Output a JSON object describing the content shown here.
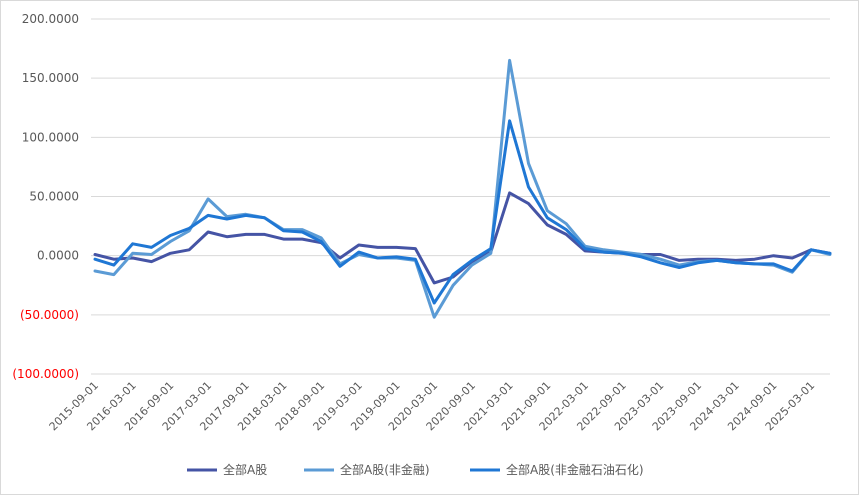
{
  "chart_data": {
    "type": "line",
    "title": "",
    "xlabel": "",
    "ylabel": "",
    "ylim": [
      -100,
      200
    ],
    "grid": "horizontal",
    "legend_position": "bottom",
    "y_ticks": [
      200,
      150,
      100,
      50,
      0,
      -50,
      -100
    ],
    "y_tick_labels": [
      "200.0000",
      "150.0000",
      "100.0000",
      "50.0000",
      "0.0000",
      "(50.0000)",
      "(100.0000)"
    ],
    "negative_tick_color": "#ff0000",
    "x_tick_labels": [
      "2015-09-01",
      "2016-03-01",
      "2016-09-01",
      "2017-03-01",
      "2017-09-01",
      "2018-03-01",
      "2018-09-01",
      "2019-03-01",
      "2019-09-01",
      "2020-03-01",
      "2020-09-01",
      "2021-03-01",
      "2021-09-01",
      "2022-03-01",
      "2022-09-01",
      "2023-03-01",
      "2023-09-01",
      "2024-03-01",
      "2024-09-01",
      "2025-03-01"
    ],
    "x": [
      "2015-09-01",
      "2015-12-01",
      "2016-03-01",
      "2016-06-01",
      "2016-09-01",
      "2016-12-01",
      "2017-03-01",
      "2017-06-01",
      "2017-09-01",
      "2017-12-01",
      "2018-03-01",
      "2018-06-01",
      "2018-09-01",
      "2018-12-01",
      "2019-03-01",
      "2019-06-01",
      "2019-09-01",
      "2019-12-01",
      "2020-03-01",
      "2020-06-01",
      "2020-09-01",
      "2020-12-01",
      "2021-03-01",
      "2021-06-01",
      "2021-09-01",
      "2021-12-01",
      "2022-03-01",
      "2022-06-01",
      "2022-09-01",
      "2022-12-01",
      "2023-03-01",
      "2023-06-01",
      "2023-09-01",
      "2023-12-01",
      "2024-03-01",
      "2024-06-01",
      "2024-09-01",
      "2024-12-01",
      "2025-03-01",
      "2025-06-01"
    ],
    "series": [
      {
        "name": "全部A股",
        "color": "#4554a5",
        "values": [
          1,
          -3,
          -2,
          -5,
          2,
          5,
          20,
          16,
          18,
          18,
          14,
          14,
          11,
          -2,
          9,
          7,
          7,
          6,
          -23,
          -18,
          -5,
          3,
          53,
          44,
          26,
          18,
          4,
          3,
          2,
          1,
          1,
          -4,
          -3,
          -3,
          -4,
          -3,
          0,
          -2,
          5,
          2
        ]
      },
      {
        "name": "全部A股(非金融)",
        "color": "#5b9bd5",
        "values": [
          -13,
          -16,
          2,
          1,
          12,
          21,
          48,
          33,
          35,
          32,
          22,
          22,
          15,
          -7,
          1,
          -2,
          -2,
          -4,
          -52,
          -25,
          -8,
          2,
          165,
          78,
          38,
          27,
          8,
          5,
          3,
          1,
          -3,
          -8,
          -5,
          -4,
          -6,
          -7,
          -8,
          -14,
          5,
          1
        ]
      },
      {
        "name": "全部A股(非金融石油石化)",
        "color": "#1f77d4",
        "values": [
          -3,
          -8,
          10,
          7,
          17,
          23,
          34,
          31,
          34,
          32,
          21,
          20,
          12,
          -9,
          3,
          -2,
          -1,
          -3,
          -40,
          -16,
          -4,
          6,
          114,
          58,
          32,
          22,
          6,
          3,
          2,
          -1,
          -6,
          -10,
          -6,
          -4,
          -6,
          -7,
          -7,
          -13,
          5,
          2
        ]
      }
    ]
  }
}
